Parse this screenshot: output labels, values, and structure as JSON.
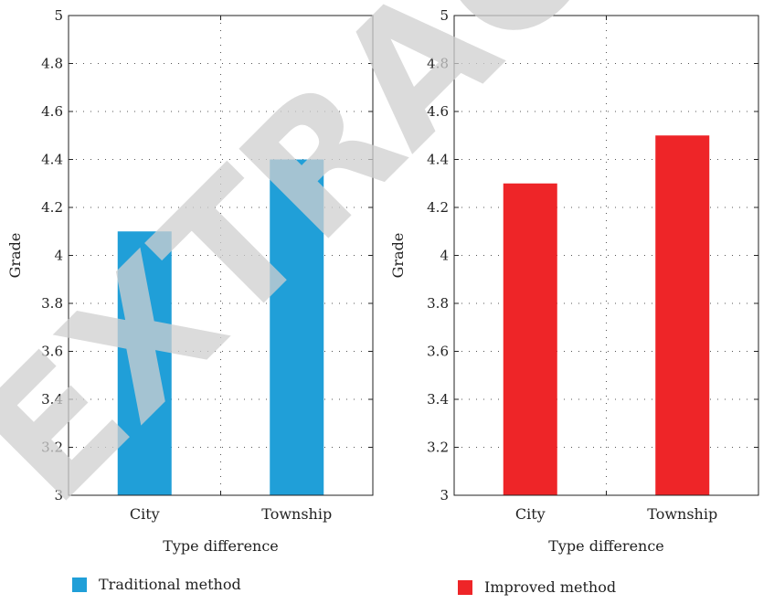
{
  "chart_data": [
    {
      "type": "bar",
      "categories": [
        "City",
        "Township"
      ],
      "series": [
        {
          "name": "Traditional method",
          "values": [
            4.1,
            4.4
          ]
        }
      ],
      "xlabel": "Type difference",
      "ylabel": "Grade",
      "ylim": [
        3,
        5
      ],
      "yticks": [
        "3",
        "3.2",
        "3.4",
        "3.6",
        "3.8",
        "4",
        "4.2",
        "4.4",
        "4.6",
        "4.8",
        "5"
      ],
      "grid": true,
      "legend": "bottom-left",
      "color": "#209fd8"
    },
    {
      "type": "bar",
      "categories": [
        "City",
        "Township"
      ],
      "series": [
        {
          "name": "Improved method",
          "values": [
            4.3,
            4.5
          ]
        }
      ],
      "xlabel": "Type difference",
      "ylabel": "Grade",
      "ylim": [
        3,
        5
      ],
      "yticks": [
        "3",
        "3.2",
        "3.4",
        "3.6",
        "3.8",
        "4",
        "4.2",
        "4.4",
        "4.6",
        "4.8",
        "5"
      ],
      "grid": true,
      "legend": "bottom-left",
      "color": "#ee2528"
    }
  ],
  "watermark": "EXTRACTED"
}
